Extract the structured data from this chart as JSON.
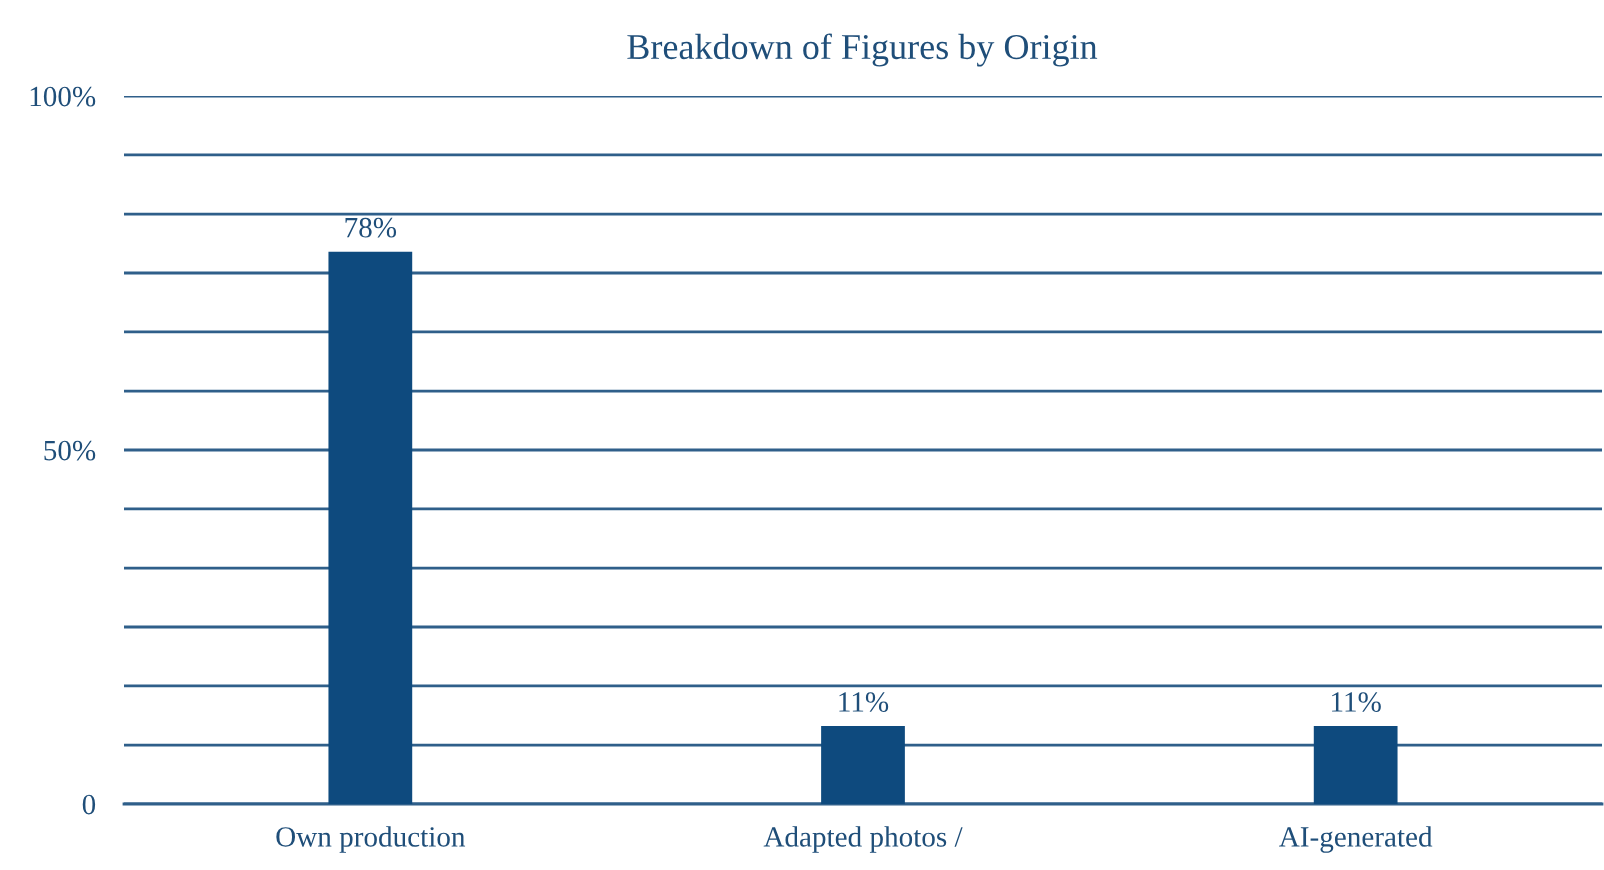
{
  "chart_data": {
    "type": "bar",
    "title": "Breakdown of Figures by Origin",
    "categories": [
      "Own production",
      "Adapted photos /",
      "AI-generated"
    ],
    "values": [
      78,
      11,
      11
    ],
    "color": "#0e4a7e",
    "value_labels": [
      "78%",
      "11%",
      "11%"
    ],
    "ylim": [
      0,
      100
    ],
    "yticks": [
      {
        "value": 0,
        "label": "0"
      },
      {
        "value": 8.33,
        "label": null
      },
      {
        "value": 16.67,
        "label": null
      },
      {
        "value": 25,
        "label": null
      },
      {
        "value": 33.33,
        "label": null
      },
      {
        "value": 41.67,
        "label": null
      },
      {
        "value": 50,
        "label": "50%"
      },
      {
        "value": 58.33,
        "label": null
      },
      {
        "value": 66.67,
        "label": null
      },
      {
        "value": 75,
        "label": null
      },
      {
        "value": 83.33,
        "label": null
      },
      {
        "value": 91.67,
        "label": null
      },
      {
        "value": 100,
        "label": "100%"
      }
    ],
    "grid": "y",
    "legend": false
  }
}
